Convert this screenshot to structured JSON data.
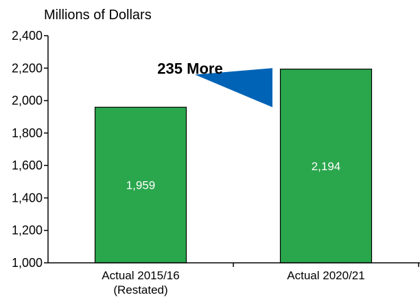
{
  "chart_data": {
    "type": "bar",
    "title": "",
    "subtitle": "Millions of Dollars",
    "xlabel": "",
    "ylabel": "",
    "ylim": [
      1000,
      2400
    ],
    "yticks": [
      1000,
      1200,
      1400,
      1600,
      1800,
      2000,
      2200,
      2400
    ],
    "ytick_labels": [
      "1,000",
      "1,200",
      "1,400",
      "1,600",
      "1,800",
      "2,000",
      "2,200",
      "2,400"
    ],
    "categories": [
      [
        "Actual 2015/16",
        "(Restated)"
      ],
      [
        "Actual 2020/21"
      ]
    ],
    "values": [
      1959,
      2194
    ],
    "data_labels": [
      "1,959",
      "2,194"
    ],
    "grid": false,
    "annotation": {
      "text": "235 More",
      "shape": "left-pointing arrow",
      "color": "#0063b5"
    },
    "colors": {
      "bar_fill": "#2aa64c",
      "bar_stroke": "#000000",
      "data_label": "#ffffff",
      "axis": "#000000",
      "text": "#000000"
    }
  }
}
